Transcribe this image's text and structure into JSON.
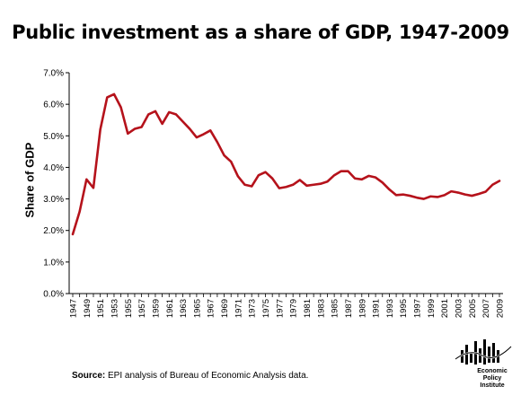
{
  "chart_data": {
    "type": "line",
    "title": "Public investment as a share of GDP, 1947-2009",
    "ylabel": "Share of GDP",
    "xlabel": "",
    "ylim": [
      0,
      7
    ],
    "y_ticks": [
      "0.0%",
      "1.0%",
      "2.0%",
      "3.0%",
      "4.0%",
      "5.0%",
      "6.0%",
      "7.0%"
    ],
    "y_tick_values": [
      0,
      1,
      2,
      3,
      4,
      5,
      6,
      7
    ],
    "x_tick_labels": [
      "1947",
      "1949",
      "1951",
      "1953",
      "1955",
      "1957",
      "1959",
      "1961",
      "1963",
      "1965",
      "1967",
      "1969",
      "1971",
      "1973",
      "1975",
      "1977",
      "1979",
      "1981",
      "1983",
      "1985",
      "1987",
      "1989",
      "1991",
      "1993",
      "1995",
      "1997",
      "1999",
      "2001",
      "2003",
      "2005",
      "2007",
      "2009"
    ],
    "grid": false,
    "line_color": "#b5121b",
    "x": [
      1947,
      1948,
      1949,
      1950,
      1951,
      1952,
      1953,
      1954,
      1955,
      1956,
      1957,
      1958,
      1959,
      1960,
      1961,
      1962,
      1963,
      1964,
      1965,
      1966,
      1967,
      1968,
      1969,
      1970,
      1971,
      1972,
      1973,
      1974,
      1975,
      1976,
      1977,
      1978,
      1979,
      1980,
      1981,
      1982,
      1983,
      1984,
      1985,
      1986,
      1987,
      1988,
      1989,
      1990,
      1991,
      1992,
      1993,
      1994,
      1995,
      1996,
      1997,
      1998,
      1999,
      2000,
      2001,
      2002,
      2003,
      2004,
      2005,
      2006,
      2007,
      2008,
      2009
    ],
    "series": [
      {
        "values": [
          1.88,
          2.6,
          3.62,
          3.35,
          5.2,
          6.22,
          6.32,
          5.9,
          5.07,
          5.22,
          5.28,
          5.68,
          5.78,
          5.38,
          5.75,
          5.68,
          5.45,
          5.22,
          4.95,
          5.05,
          5.17,
          4.8,
          4.38,
          4.18,
          3.72,
          3.45,
          3.4,
          3.75,
          3.85,
          3.65,
          3.34,
          3.38,
          3.45,
          3.6,
          3.42,
          3.45,
          3.48,
          3.55,
          3.75,
          3.88,
          3.88,
          3.65,
          3.62,
          3.73,
          3.68,
          3.52,
          3.3,
          3.12,
          3.14,
          3.1,
          3.04,
          3.0,
          3.08,
          3.06,
          3.12,
          3.24,
          3.2,
          3.14,
          3.1,
          3.16,
          3.23,
          3.45,
          3.57
        ]
      }
    ]
  },
  "source": {
    "label": "Source:",
    "text": " EPI analysis of Bureau of Economic Analysis data."
  },
  "logo": {
    "line1": "Economic",
    "line2": "Policy",
    "line3": "Institute"
  }
}
